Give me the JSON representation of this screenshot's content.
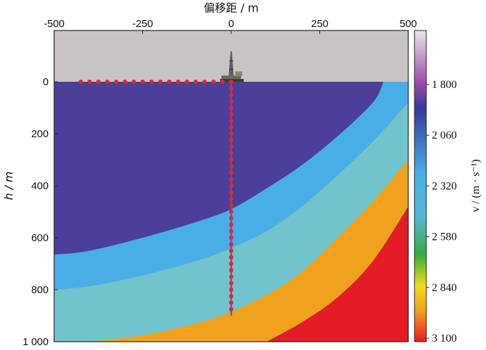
{
  "chart_data": {
    "type": "heatmap",
    "title": "",
    "xlabel": "偏移距 / m",
    "ylabel": "h / m",
    "xlim": [
      -500,
      500
    ],
    "ylim": [
      0,
      1000
    ],
    "x_ticks": [
      "-500",
      "-250",
      "0",
      "250",
      "500"
    ],
    "x_tick_values": [
      -500,
      -250,
      0,
      250,
      500
    ],
    "y_ticks": [
      "0",
      "200",
      "400",
      "600",
      "800",
      "1 000"
    ],
    "y_tick_values": [
      0,
      200,
      400,
      600,
      800,
      1000
    ],
    "air_above_zero": true,
    "colorbar": {
      "label": "v / (m · s⁻¹)",
      "range": [
        1800,
        3100
      ],
      "ticks": [
        "1 800",
        "2 060",
        "2 320",
        "2 580",
        "2 840",
        "3 100"
      ]
    },
    "layers": [
      {
        "velocity_band": "lowest",
        "color": "#4b3f97"
      },
      {
        "velocity_band": "low",
        "color": "#4aaee6"
      },
      {
        "velocity_band": "middle",
        "color": "#71c4cc"
      },
      {
        "velocity_band": "high",
        "color": "#f0a21e"
      },
      {
        "velocity_band": "highest",
        "color": "#e31c28"
      }
    ],
    "layer_boundaries": [
      {
        "points": [
          [
            -500,
            665
          ],
          [
            -400,
            650
          ],
          [
            -250,
            600
          ],
          [
            -100,
            540
          ],
          [
            0,
            490
          ],
          [
            100,
            410
          ],
          [
            200,
            320
          ],
          [
            300,
            210
          ],
          [
            400,
            80
          ],
          [
            430,
            0
          ]
        ]
      },
      {
        "points": [
          [
            -500,
            800
          ],
          [
            -400,
            787
          ],
          [
            -250,
            745
          ],
          [
            -100,
            690
          ],
          [
            0,
            640
          ],
          [
            100,
            575
          ],
          [
            200,
            480
          ],
          [
            300,
            360
          ],
          [
            400,
            230
          ],
          [
            480,
            110
          ],
          [
            500,
            80
          ]
        ]
      },
      {
        "points": [
          [
            -400,
            1000
          ],
          [
            -250,
            975
          ],
          [
            -100,
            930
          ],
          [
            0,
            885
          ],
          [
            100,
            820
          ],
          [
            200,
            730
          ],
          [
            300,
            600
          ],
          [
            400,
            460
          ],
          [
            500,
            300
          ]
        ]
      },
      {
        "points": [
          [
            100,
            1000
          ],
          [
            200,
            925
          ],
          [
            300,
            830
          ],
          [
            400,
            690
          ],
          [
            500,
            480
          ]
        ]
      }
    ],
    "surface_receivers": {
      "x": [
        -425,
        -400,
        -375,
        -350,
        -325,
        -300,
        -275,
        -250,
        -225,
        -200,
        -175,
        -150,
        -125,
        -100,
        -75,
        -50,
        -25,
        0
      ],
      "h": 0
    },
    "well_receivers": {
      "x": 0,
      "h": [
        0,
        25,
        50,
        75,
        100,
        125,
        150,
        175,
        200,
        225,
        250,
        275,
        300,
        325,
        350,
        375,
        400,
        425,
        450,
        475,
        500,
        525,
        550,
        575,
        600,
        625,
        650,
        675,
        700,
        725,
        750,
        775,
        800,
        825,
        850,
        875
      ]
    },
    "well_bottom": 900
  },
  "colors": {
    "air": "#c8c4c5",
    "receiver": "#e8242c",
    "well": "#5a5ab0",
    "colorbar_stops": [
      "#e8e6e8",
      "#9a4aa8",
      "#3a3898",
      "#4aaee6",
      "#57b6d2",
      "#3aa93a",
      "#eedd1a",
      "#f0a21e",
      "#e31c28"
    ]
  }
}
